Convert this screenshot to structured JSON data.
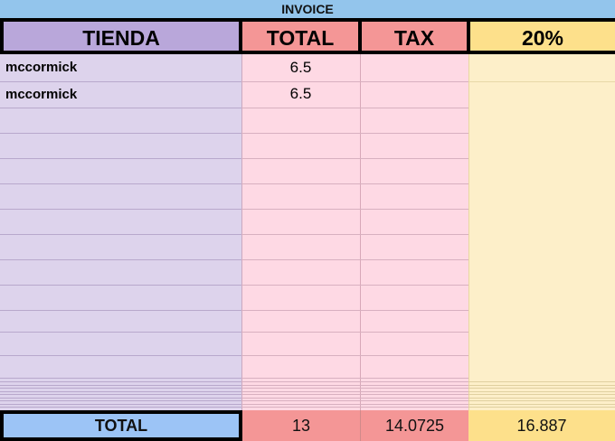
{
  "title": "INVOICE",
  "headers": {
    "store": "TIENDA",
    "total": "TOTAL",
    "tax": "TAX",
    "pct": "20%"
  },
  "rows": [
    {
      "store": "mccormick",
      "total": "6.5"
    },
    {
      "store": "mccormick",
      "total": "6.5"
    }
  ],
  "footer": {
    "label": "TOTAL",
    "total": "13",
    "tax": "14.0725",
    "pct": "16.887"
  },
  "colors": {
    "title": "#93c5ec",
    "store": "#b9a7da",
    "store_body": "#ddd3ec",
    "total": "#f49696",
    "body_pink": "#fed9e4",
    "pct": "#fde08b",
    "pct_body": "#fdefc9",
    "footer_label": "#9cc4f6"
  }
}
